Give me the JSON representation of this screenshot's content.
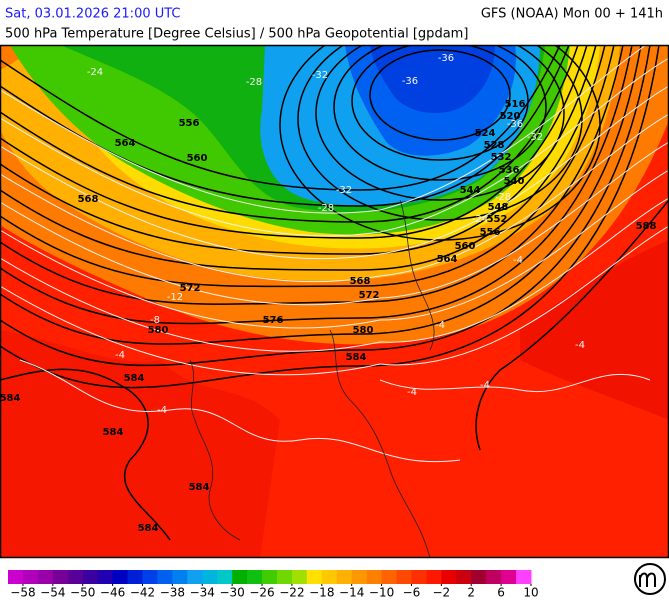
{
  "header": {
    "left": "Sat, 03.01.2026 21:00 UTC",
    "right": "GFS (NOAA) Mon 00 + 141h",
    "subtitle": "500 hPa Temperature [Degree Celsius] / 500 hPa Geopotential [gpdam]"
  },
  "map": {
    "geopotential_labels": [
      "556",
      "564",
      "560",
      "568",
      "572",
      "580",
      "576",
      "568",
      "572",
      "580",
      "584",
      "584",
      "584",
      "584",
      "584",
      "584",
      "564",
      "560",
      "556",
      "552",
      "548",
      "544",
      "540",
      "536",
      "532",
      "528",
      "524",
      "520",
      "516",
      "588"
    ],
    "temperature_labels": [
      "-24",
      "-28",
      "-32",
      "-36",
      "-36",
      "-32",
      "-28",
      "-28",
      "-24",
      "-32",
      "-36",
      "-12",
      "-8",
      "-4",
      "-4",
      "-4",
      "-4",
      "-4",
      "-4",
      "-4"
    ]
  },
  "legend": {
    "lim": [
      -60,
      10
    ],
    "colors": [
      "#cc00cc",
      "#b000bb",
      "#9900aa",
      "#770099",
      "#5a0099",
      "#3c00a0",
      "#2000b0",
      "#0000c0",
      "#0020d8",
      "#0040e8",
      "#0060f0",
      "#0080f0",
      "#10a0f0",
      "#00b4e0",
      "#00c8c8",
      "#00b000",
      "#10c010",
      "#40cc00",
      "#70d800",
      "#a0e000",
      "#ffe000",
      "#ffc800",
      "#ffb000",
      "#ff9800",
      "#ff8000",
      "#ff6400",
      "#ff4800",
      "#ff3000",
      "#ff1800",
      "#e80000",
      "#c80010",
      "#a00030",
      "#c00060",
      "#e00090",
      "#ff40ff"
    ],
    "ticks": [
      {
        "value": -58,
        "label": "−58"
      },
      {
        "value": -54,
        "label": "−54"
      },
      {
        "value": -50,
        "label": "−50"
      },
      {
        "value": -46,
        "label": "−46"
      },
      {
        "value": -42,
        "label": "−42"
      },
      {
        "value": -38,
        "label": "−38"
      },
      {
        "value": -34,
        "label": "−34"
      },
      {
        "value": -30,
        "label": "−30"
      },
      {
        "value": -26,
        "label": "−26"
      },
      {
        "value": -22,
        "label": "−22"
      },
      {
        "value": -18,
        "label": "−18"
      },
      {
        "value": -14,
        "label": "−14"
      },
      {
        "value": -10,
        "label": "−10"
      },
      {
        "value": -6,
        "label": "−6"
      },
      {
        "value": -2,
        "label": "−2"
      },
      2,
      6,
      10
    ]
  }
}
